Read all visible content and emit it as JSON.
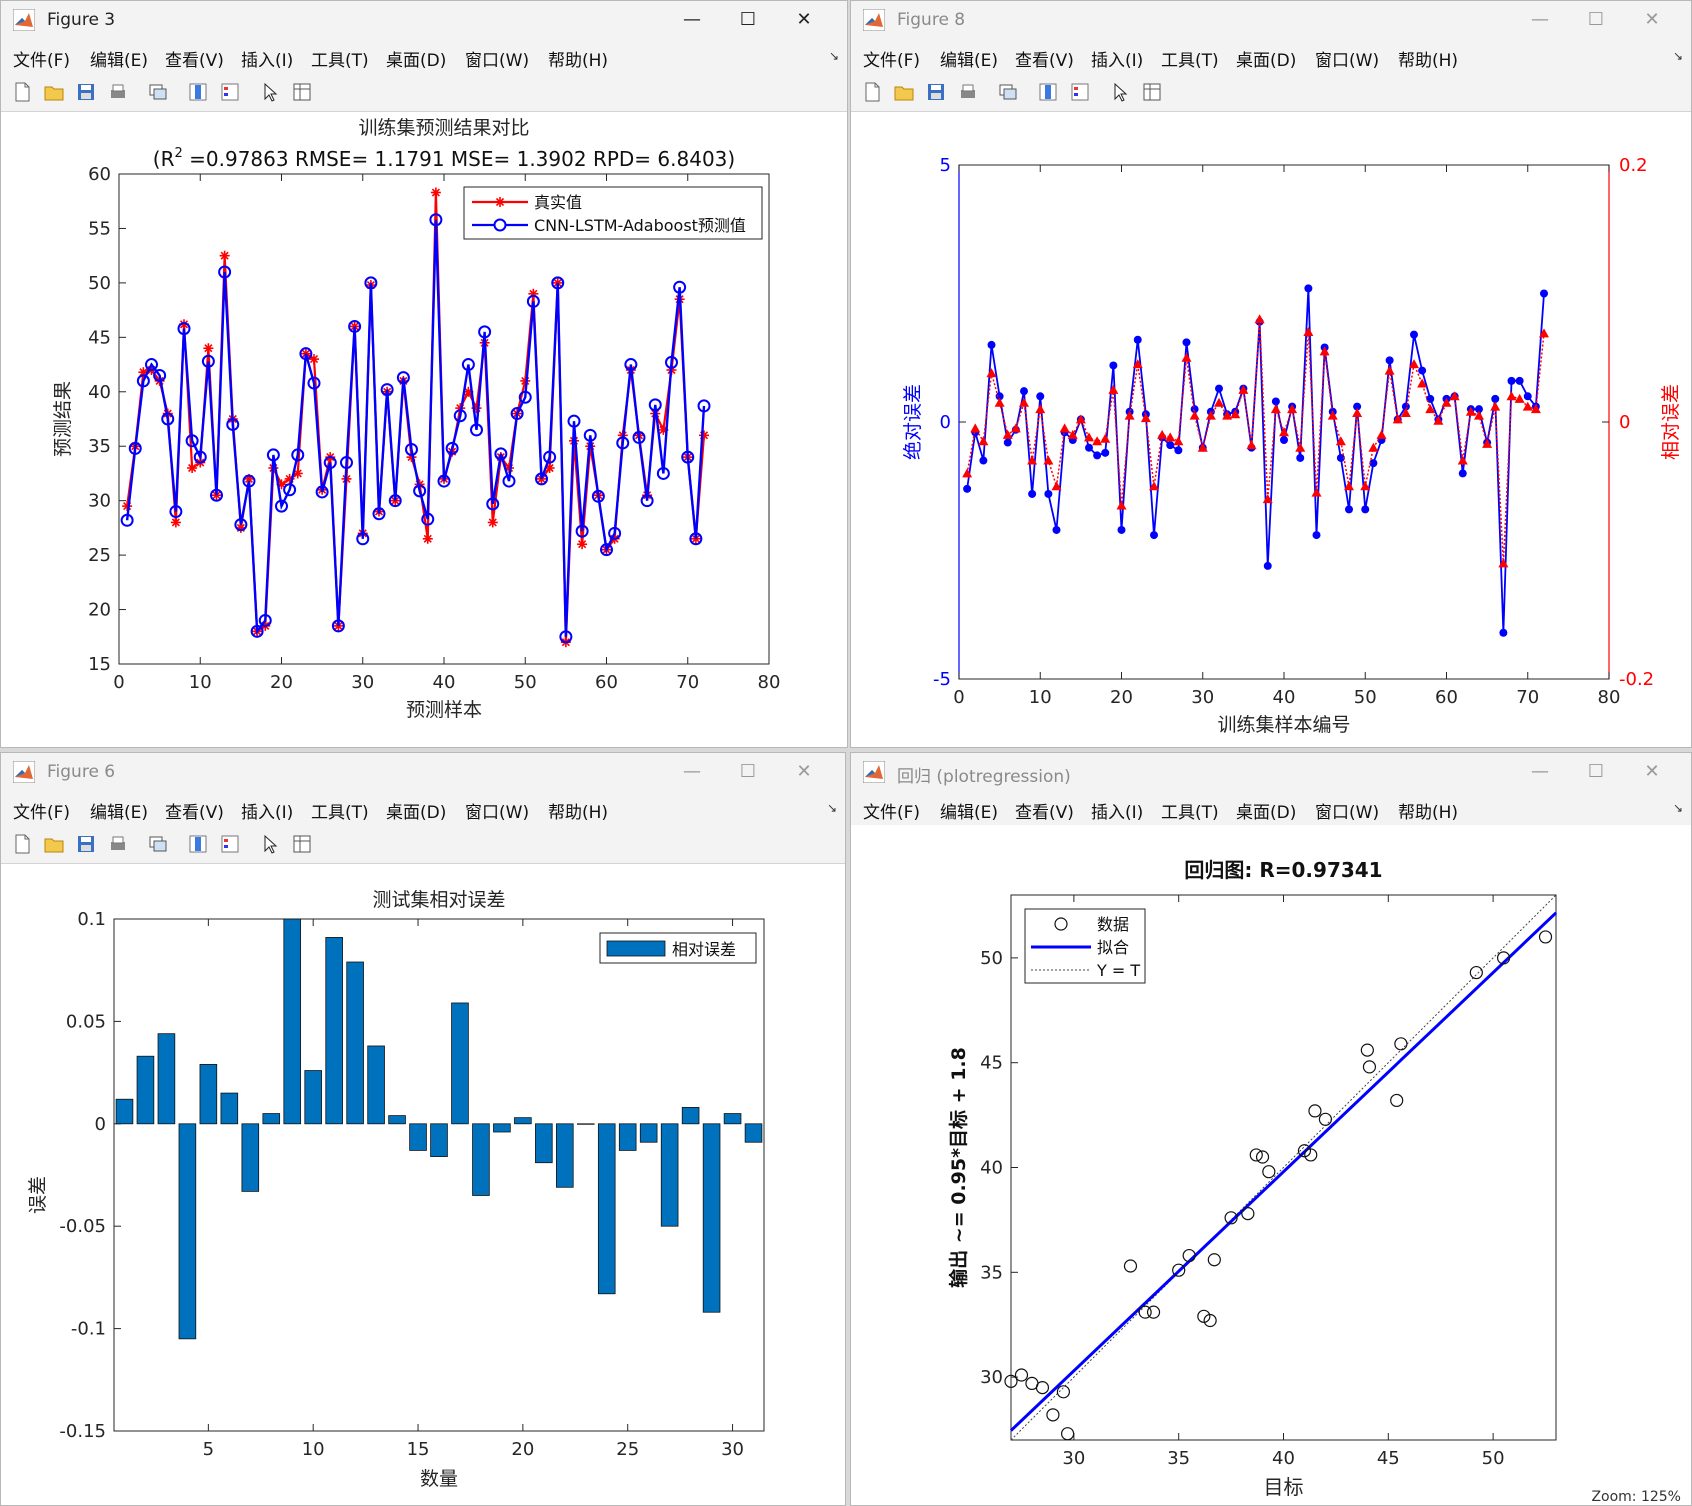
{
  "menu_items": [
    "文件(F)",
    "编辑(E)",
    "查看(V)",
    "插入(I)",
    "工具(T)",
    "桌面(D)",
    "窗口(W)",
    "帮助(H)"
  ],
  "icons": [
    "new-file-icon",
    "open-folder-icon",
    "save-icon",
    "print-icon",
    "link-figures-icon",
    "colorbar-icon",
    "legend-icon",
    "pointer-icon",
    "property-inspector-icon"
  ],
  "colors": {
    "true_series": "#ff0000",
    "pred_series": "#0000ff",
    "bar_fill": "#0072bd",
    "abs_axis": "#0000ff",
    "rel_axis": "#ff0000"
  },
  "windows": [
    {
      "id": "fig3",
      "title": "Figure 3",
      "active": true
    },
    {
      "id": "fig8",
      "title": "Figure 8",
      "active": false
    },
    {
      "id": "fig6",
      "title": "Figure 6",
      "active": false
    },
    {
      "id": "reg",
      "title": "回归 (plotregression)",
      "active": false
    }
  ],
  "status": {
    "zoom": "Zoom: 125%"
  },
  "chart_data": [
    {
      "type": "line",
      "title": "训练集预测结果对比",
      "subtitle": "(R^2 =0.97863 RMSE= 1.1791 MSE= 1.3902 RPD= 6.8403)",
      "subtitle_parts": {
        "pre": "(R",
        "sup": "2",
        "post": " =0.97863 RMSE= 1.1791 MSE= 1.3902 RPD= 6.8403)"
      },
      "xlabel": "预测样本",
      "ylabel": "预测结果",
      "xlim": [
        0,
        80
      ],
      "ylim": [
        15,
        60
      ],
      "xticks": [
        0,
        10,
        20,
        30,
        40,
        50,
        60,
        70,
        80
      ],
      "yticks": [
        15,
        20,
        25,
        30,
        35,
        40,
        45,
        50,
        55,
        60
      ],
      "legend_position": "top-right",
      "grid": false,
      "series": [
        {
          "name": "真实值",
          "marker": "asterisk",
          "values": [
            29.5,
            35,
            41.8,
            42,
            41,
            38,
            28,
            46.2,
            33,
            33.5,
            44,
            30.5,
            52.5,
            37.5,
            27.5,
            32,
            18,
            18.5,
            33,
            31.5,
            32,
            32.5,
            43.5,
            43,
            31,
            34,
            18.5,
            32,
            46,
            27,
            49.8,
            29,
            40,
            30,
            41,
            34,
            31.5,
            26.5,
            58.3,
            32,
            34.5,
            38.5,
            40,
            38.5,
            44.5,
            28,
            34,
            33,
            38,
            41,
            49,
            32,
            33,
            50,
            17,
            35.5,
            26,
            35,
            30.5,
            25.5,
            26.5,
            36,
            42,
            36,
            30.5,
            38,
            36.5,
            42,
            48.5,
            34,
            26.5,
            36
          ]
        },
        {
          "name": "CNN-LSTM-Adaboost预测值",
          "marker": "circle",
          "values": [
            28.2,
            34.8,
            41,
            42.5,
            41.5,
            37.5,
            29,
            45.8,
            35.5,
            34,
            42.8,
            30.5,
            51,
            37,
            27.8,
            31.8,
            18,
            19,
            34.2,
            29.5,
            31,
            34.2,
            43.5,
            40.8,
            30.8,
            33.5,
            18.5,
            33.5,
            46,
            26.5,
            50,
            28.8,
            40.2,
            30,
            41.3,
            34.7,
            30.9,
            28.3,
            55.8,
            31.8,
            34.8,
            37.8,
            42.5,
            36.5,
            45.5,
            29.7,
            34.3,
            31.8,
            38,
            39.5,
            48.3,
            32,
            34,
            50,
            17.5,
            37.3,
            27.2,
            36,
            30.4,
            25.5,
            27,
            35.3,
            42.5,
            35.8,
            30,
            38.8,
            32.5,
            42.7,
            49.6,
            34,
            26.5,
            38.7
          ]
        }
      ]
    },
    {
      "type": "line",
      "xlabel": "训练集样本编号",
      "ylabel": "绝对误差",
      "y2label": "相对误差",
      "xlim": [
        0,
        80
      ],
      "ylim": [
        -5,
        5
      ],
      "y2lim": [
        -0.2,
        0.2
      ],
      "xticks": [
        0,
        10,
        20,
        30,
        40,
        50,
        60,
        70,
        80
      ],
      "yticks": [
        -5,
        0,
        5
      ],
      "y2ticks": [
        -0.2,
        0,
        0.2
      ],
      "grid": false,
      "series": [
        {
          "name": "绝对误差",
          "axis": "left",
          "marker": "dot",
          "values": [
            -1.3,
            -0.2,
            -0.75,
            1.5,
            0.5,
            -0.4,
            -0.15,
            0.6,
            -1.4,
            0.5,
            -1.4,
            -2.1,
            -0.2,
            -0.35,
            0.05,
            -0.5,
            -0.65,
            -0.6,
            1.1,
            -2.1,
            0.2,
            1.6,
            0.15,
            -2.2,
            -0.3,
            -0.45,
            -0.55,
            1.55,
            0.25,
            -0.5,
            0.2,
            0.65,
            0.15,
            0.2,
            0.65,
            -0.5,
            1.95,
            -2.8,
            0.4,
            -0.35,
            0.3,
            -0.7,
            2.6,
            -2.2,
            1.45,
            0.2,
            -0.7,
            -1.7,
            0.3,
            -1.7,
            -0.8,
            -0.35,
            1.2,
            0.05,
            0.3,
            1.7,
            1,
            0.45,
            0.05,
            0.45,
            0.5,
            -1,
            0.25,
            0.25,
            -0.4,
            0.45,
            -4.1,
            0.8,
            0.8,
            0.5,
            0.3,
            2.5
          ]
        },
        {
          "name": "相对误差",
          "axis": "right",
          "marker": "triangle",
          "values": [
            -0.04,
            -0.005,
            -0.015,
            0.038,
            0.015,
            -0.01,
            -0.005,
            0.015,
            -0.03,
            0.01,
            -0.03,
            -0.05,
            -0.005,
            -0.01,
            0.002,
            -0.012,
            -0.015,
            -0.013,
            0.025,
            -0.065,
            0.005,
            0.045,
            0.003,
            -0.05,
            -0.01,
            -0.012,
            -0.015,
            0.05,
            0.005,
            -0.02,
            0.005,
            0.015,
            0.005,
            0.006,
            0.025,
            -0.018,
            0.08,
            -0.06,
            0.01,
            -0.008,
            0.01,
            -0.02,
            0.07,
            -0.055,
            0.055,
            0.005,
            -0.015,
            -0.05,
            0.007,
            -0.05,
            -0.02,
            -0.01,
            0.04,
            0.002,
            0.007,
            0.045,
            0.03,
            0.01,
            0.001,
            0.015,
            0.02,
            -0.03,
            0.008,
            0.005,
            -0.017,
            0.012,
            -0.11,
            0.02,
            0.018,
            0.012,
            0.01,
            0.069
          ]
        }
      ]
    },
    {
      "type": "bar",
      "title": "测试集相对误差",
      "xlabel": "数量",
      "ylabel": "误差",
      "xlim": [
        1,
        31
      ],
      "ylim": [
        -0.15,
        0.1
      ],
      "xticks": [
        5,
        10,
        15,
        20,
        25,
        30
      ],
      "yticks": [
        -0.15,
        -0.1,
        -0.05,
        0,
        0.05,
        0.1
      ],
      "ytick_labels": [
        "-0.15",
        "-0.1",
        "-0.05",
        "0",
        "0.05",
        "0.1"
      ],
      "legend_position": "top-right",
      "grid": false,
      "series": [
        {
          "name": "相对误差",
          "values": [
            0.012,
            0.033,
            0.044,
            -0.105,
            0.029,
            0.015,
            -0.033,
            0.005,
            0.1,
            0.026,
            0.091,
            0.079,
            0.038,
            0.004,
            -0.013,
            -0.016,
            0.059,
            -0.035,
            -0.004,
            0.003,
            -0.019,
            -0.031,
            0,
            -0.083,
            -0.013,
            -0.009,
            -0.05,
            0.008,
            -0.092,
            0.005,
            -0.009
          ]
        }
      ]
    },
    {
      "type": "scatter",
      "title": "回归图: R=0.97341",
      "xlabel": "目标",
      "ylabel": "输出 ~= 0.95*目标 + 1.8",
      "xlim": [
        27,
        53
      ],
      "ylim": [
        27,
        53
      ],
      "xticks": [
        30,
        35,
        40,
        45,
        50
      ],
      "yticks": [
        30,
        35,
        40,
        45,
        50
      ],
      "legend_position": "top-left",
      "grid": false,
      "fit": {
        "slope": 0.95,
        "intercept": 1.8
      },
      "legend_entries": {
        "data": "数据",
        "fit": "拟合",
        "identity": "Y = T"
      },
      "points": [
        [
          27,
          29.8
        ],
        [
          27.5,
          30.1
        ],
        [
          28,
          29.7
        ],
        [
          28.5,
          29.5
        ],
        [
          29,
          28.2
        ],
        [
          29.5,
          29.3
        ],
        [
          29.7,
          27.3
        ],
        [
          32.7,
          35.3
        ],
        [
          33.4,
          33.1
        ],
        [
          33.8,
          33.1
        ],
        [
          35,
          35.1
        ],
        [
          35.5,
          35.8
        ],
        [
          36.2,
          32.9
        ],
        [
          36.5,
          32.7
        ],
        [
          36.7,
          35.6
        ],
        [
          37.5,
          37.6
        ],
        [
          38.3,
          37.8
        ],
        [
          38.7,
          40.6
        ],
        [
          39,
          40.5
        ],
        [
          39.3,
          39.8
        ],
        [
          41,
          40.8
        ],
        [
          41.3,
          40.6
        ],
        [
          41.5,
          42.7
        ],
        [
          42,
          42.3
        ],
        [
          44,
          45.6
        ],
        [
          44.1,
          44.8
        ],
        [
          45.4,
          43.2
        ],
        [
          45.6,
          45.9
        ],
        [
          49.2,
          49.3
        ],
        [
          50.5,
          50
        ],
        [
          52.5,
          51
        ]
      ]
    }
  ]
}
